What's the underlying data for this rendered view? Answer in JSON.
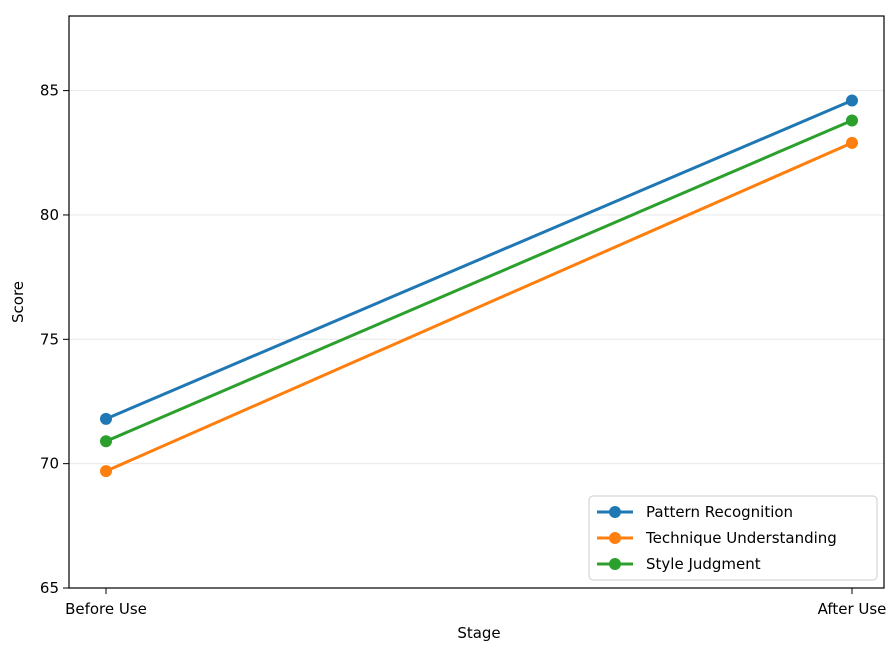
{
  "chart_data": {
    "type": "line",
    "title": "",
    "xlabel": "Stage",
    "ylabel": "Score",
    "categories": [
      "Before Use",
      "After Use"
    ],
    "ylim": [
      65,
      88
    ],
    "yticks": [
      65,
      70,
      75,
      80,
      85
    ],
    "grid": "horizontal",
    "legend_position": "lower-right",
    "series": [
      {
        "name": "Pattern Recognition",
        "color": "#1f77b4",
        "values": [
          71.8,
          84.6
        ]
      },
      {
        "name": "Technique Understanding",
        "color": "#ff7f0e",
        "values": [
          69.7,
          82.9
        ]
      },
      {
        "name": "Style Judgment",
        "color": "#2ca02c",
        "values": [
          70.9,
          83.8
        ]
      }
    ]
  }
}
